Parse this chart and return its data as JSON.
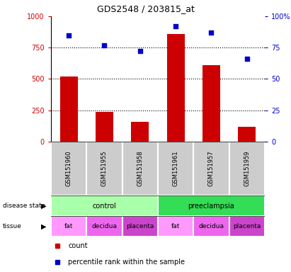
{
  "title": "GDS2548 / 203815_at",
  "samples": [
    "GSM151960",
    "GSM151955",
    "GSM151958",
    "GSM151961",
    "GSM151957",
    "GSM151959"
  ],
  "counts": [
    520,
    235,
    155,
    860,
    610,
    115
  ],
  "percentiles": [
    85,
    77,
    72,
    92,
    87,
    66
  ],
  "ylim_left": [
    0,
    1000
  ],
  "ylim_right": [
    0,
    100
  ],
  "yticks_left": [
    0,
    250,
    500,
    750,
    1000
  ],
  "yticks_right": [
    0,
    25,
    50,
    75,
    100
  ],
  "bar_color": "#cc0000",
  "dot_color": "#0000cc",
  "disease_state": [
    {
      "label": "control",
      "span": [
        0,
        3
      ],
      "color": "#aaffaa"
    },
    {
      "label": "preeclampsia",
      "span": [
        3,
        6
      ],
      "color": "#33dd55"
    }
  ],
  "tissue": [
    {
      "label": "fat",
      "span": [
        0,
        1
      ],
      "color": "#ff99ff"
    },
    {
      "label": "decidua",
      "span": [
        1,
        2
      ],
      "color": "#ee66ee"
    },
    {
      "label": "placenta",
      "span": [
        2,
        3
      ],
      "color": "#cc44cc"
    },
    {
      "label": "fat",
      "span": [
        3,
        4
      ],
      "color": "#ff99ff"
    },
    {
      "label": "decidua",
      "span": [
        4,
        5
      ],
      "color": "#ee66ee"
    },
    {
      "label": "placenta",
      "span": [
        5,
        6
      ],
      "color": "#cc44cc"
    }
  ],
  "left_label_color": "#cc0000",
  "right_label_color": "#0000cc",
  "sample_bg_color": "#cccccc",
  "legend_count_color": "#cc0000",
  "legend_pct_color": "#0000cc",
  "grid_color": "#000000",
  "grid_linestyle": ":",
  "grid_linewidth": 0.8
}
